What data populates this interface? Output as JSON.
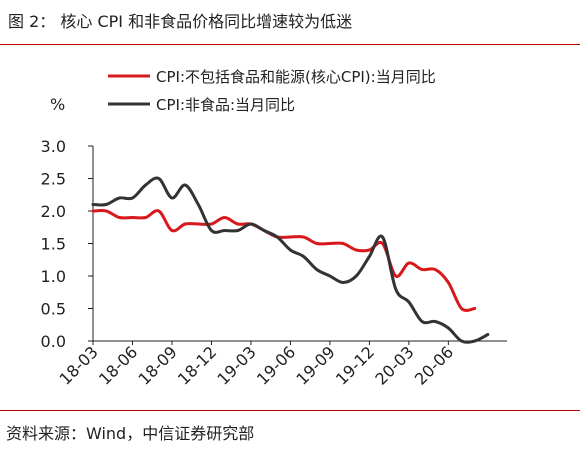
{
  "figure": {
    "title": "图 2：  核心 CPI 和非食品价格同比增速较为低迷",
    "source": "资料来源：Wind，中信证券研究部",
    "rule_color": "#c00000"
  },
  "chart_data": {
    "type": "line",
    "ylabel": "%",
    "xlabel": "",
    "ylim": [
      0.0,
      3.0
    ],
    "yticks": [
      "0.0",
      "0.5",
      "1.0",
      "1.5",
      "2.0",
      "2.5",
      "3.0"
    ],
    "x": [
      "18-03",
      "18-04",
      "18-05",
      "18-06",
      "18-07",
      "18-08",
      "18-09",
      "18-10",
      "18-11",
      "18-12",
      "19-01",
      "19-02",
      "19-03",
      "19-04",
      "19-05",
      "19-06",
      "19-07",
      "19-08",
      "19-09",
      "19-10",
      "19-11",
      "19-12",
      "20-01",
      "20-02",
      "20-03",
      "20-04",
      "20-05",
      "20-06",
      "20-07",
      "20-08",
      "20-09",
      "20-10"
    ],
    "xticks": [
      "18-03",
      "18-06",
      "18-09",
      "18-12",
      "19-03",
      "19-06",
      "19-09",
      "19-12",
      "20-03",
      "20-06"
    ],
    "legend_position": "top",
    "series": [
      {
        "name": "CPI:不包括食品和能源(核心CPI):当月同比",
        "color": "#d7191c",
        "values": [
          2.0,
          2.0,
          1.9,
          1.9,
          1.9,
          2.0,
          1.7,
          1.8,
          1.8,
          1.8,
          1.9,
          1.8,
          1.8,
          1.7,
          1.6,
          1.6,
          1.6,
          1.5,
          1.5,
          1.5,
          1.4,
          1.4,
          1.5,
          1.0,
          1.2,
          1.1,
          1.1,
          0.9,
          0.5,
          0.5,
          null,
          null
        ]
      },
      {
        "name": "CPI:非食品:当月同比",
        "color": "#333333",
        "values": [
          2.1,
          2.1,
          2.2,
          2.2,
          2.4,
          2.5,
          2.2,
          2.4,
          2.1,
          1.7,
          1.7,
          1.7,
          1.8,
          1.7,
          1.6,
          1.4,
          1.3,
          1.1,
          1.0,
          0.9,
          1.0,
          1.3,
          1.6,
          0.8,
          0.6,
          0.3,
          0.3,
          0.2,
          0.0,
          0.0,
          0.1,
          null
        ]
      }
    ]
  }
}
